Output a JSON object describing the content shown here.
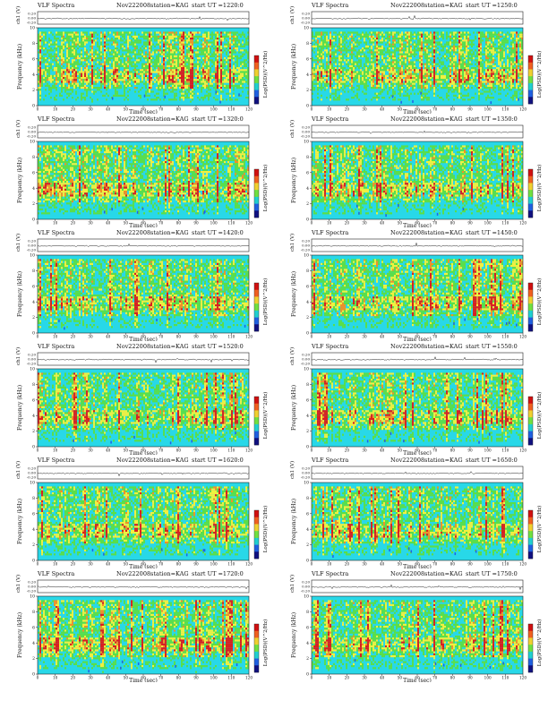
{
  "page": {
    "background": "#ffffff"
  },
  "common": {
    "title": "VLF Spectra",
    "date": "Nov222008",
    "station": "station=KAG",
    "ut_prefix": "start  UT  =",
    "amp_axis_label": "ch1 (V)",
    "freq_axis_label": "Frequency  (kHz)",
    "time_axis_label": "Time  (sec)",
    "colorbar_label": "Log(PSD)(V^2/Hz)"
  },
  "colors": {
    "spectro_bg": "#20e0a0",
    "cyan": "#28d8e8",
    "green": "#5ade4a",
    "yellow": "#f0f040",
    "orange": "#f09028",
    "red": "#d82020",
    "blue": "#2060e8",
    "trace": "#222222"
  },
  "colorbar": [
    "#d01010",
    "#f06020",
    "#f0d030",
    "#70e040",
    "#20d0d0",
    "#2060e0",
    "#101080"
  ],
  "panels": [
    {
      "ut": "1220:0",
      "freq_ticks": [
        "0",
        "2",
        "4",
        "6",
        "8",
        "10"
      ],
      "time_ticks": [
        "0",
        "10",
        "20",
        "30",
        "40",
        "50",
        "60",
        "70",
        "80",
        "90",
        "100",
        "110",
        "120"
      ],
      "amp_ticks": [
        "0.20",
        "0.00",
        "-0.20"
      ]
    },
    {
      "ut": "1250:0",
      "freq_ticks": [
        "0",
        "2",
        "4",
        "6",
        "8",
        "10"
      ],
      "time_ticks": [
        "0",
        "10",
        "20",
        "30",
        "40",
        "50",
        "60",
        "70",
        "80",
        "90",
        "100",
        "110",
        "120"
      ],
      "amp_ticks": [
        "0.20",
        "0.00",
        "-0.20"
      ]
    },
    {
      "ut": "1320:0",
      "freq_ticks": [
        "0",
        "2",
        "4",
        "6",
        "8",
        "10"
      ],
      "time_ticks": [
        "0",
        "10",
        "20",
        "30",
        "40",
        "50",
        "60",
        "70",
        "80",
        "90",
        "100",
        "110",
        "120"
      ],
      "amp_ticks": [
        "0.20",
        "0.00",
        "-0.20"
      ]
    },
    {
      "ut": "1350:0",
      "freq_ticks": [
        "0",
        "2",
        "4",
        "6",
        "8",
        "10"
      ],
      "time_ticks": [
        "0",
        "10",
        "20",
        "30",
        "40",
        "50",
        "60",
        "70",
        "80",
        "90",
        "100",
        "110",
        "120"
      ],
      "amp_ticks": [
        "0.20",
        "0.00",
        "-0.20"
      ]
    },
    {
      "ut": "1420:0",
      "freq_ticks": [
        "0",
        "2",
        "4",
        "6",
        "8",
        "10"
      ],
      "time_ticks": [
        "0",
        "10",
        "20",
        "30",
        "40",
        "50",
        "60",
        "70",
        "80",
        "90",
        "100",
        "110",
        "120"
      ],
      "amp_ticks": [
        "0.20",
        "0.00",
        "-0.20"
      ]
    },
    {
      "ut": "1450:0",
      "freq_ticks": [
        "0",
        "2",
        "4",
        "6",
        "8",
        "10"
      ],
      "time_ticks": [
        "0",
        "10",
        "20",
        "30",
        "40",
        "50",
        "60",
        "70",
        "80",
        "90",
        "100",
        "110",
        "120"
      ],
      "amp_ticks": [
        "0.20",
        "0.00",
        "-0.20"
      ]
    },
    {
      "ut": "1520:0",
      "freq_ticks": [
        "0",
        "2",
        "4",
        "6",
        "8",
        "10"
      ],
      "time_ticks": [
        "0",
        "10",
        "20",
        "30",
        "40",
        "50",
        "60",
        "70",
        "80",
        "90",
        "100",
        "110",
        "120"
      ],
      "amp_ticks": [
        "0.20",
        "0.00",
        "-0.20"
      ]
    },
    {
      "ut": "1550:0",
      "freq_ticks": [
        "0",
        "2",
        "4",
        "6",
        "8",
        "10"
      ],
      "time_ticks": [
        "0",
        "10",
        "20",
        "30",
        "40",
        "50",
        "60",
        "70",
        "80",
        "90",
        "100",
        "110",
        "120"
      ],
      "amp_ticks": [
        "0.20",
        "0.00",
        "-0.20"
      ]
    },
    {
      "ut": "1620:0",
      "freq_ticks": [
        "0",
        "2",
        "4",
        "6",
        "8",
        "10"
      ],
      "time_ticks": [
        "0",
        "10",
        "20",
        "30",
        "40",
        "50",
        "60",
        "70",
        "80",
        "90",
        "100",
        "110",
        "120"
      ],
      "amp_ticks": [
        "0.20",
        "0.00",
        "-0.20"
      ]
    },
    {
      "ut": "1650:0",
      "freq_ticks": [
        "0",
        "2",
        "4",
        "6",
        "8",
        "10"
      ],
      "time_ticks": [
        "0",
        "10",
        "20",
        "30",
        "40",
        "50",
        "60",
        "70",
        "80",
        "90",
        "100",
        "110",
        "120"
      ],
      "amp_ticks": [
        "0.20",
        "0.00",
        "-0.20"
      ]
    },
    {
      "ut": "1720:0",
      "freq_ticks": [
        "0",
        "2",
        "4",
        "6",
        "8",
        "10"
      ],
      "time_ticks": [
        "0",
        "10",
        "20",
        "30",
        "40",
        "50",
        "60",
        "70",
        "80",
        "90",
        "100",
        "110",
        "120"
      ],
      "amp_ticks": [
        "0.20",
        "0.00",
        "-0.20"
      ]
    },
    {
      "ut": "1750:0",
      "freq_ticks": [
        "0",
        "2",
        "4",
        "6",
        "8",
        "10"
      ],
      "time_ticks": [
        "0",
        "10",
        "20",
        "30",
        "40",
        "50",
        "60",
        "70",
        "80",
        "90",
        "100",
        "110",
        "120"
      ],
      "amp_ticks": [
        "0.20",
        "0.00",
        "-0.20"
      ]
    }
  ],
  "chart_data": {
    "type": "heatmap",
    "title": "VLF Spectra",
    "subtitle": "Nov222008  station=KAG",
    "xlabel": "Time  (sec)",
    "ylabel": "Frequency  (kHz)",
    "xlim": [
      0,
      120
    ],
    "ylim": [
      0,
      10
    ],
    "colorbar_label": "Log(PSD)(V^2/Hz)",
    "waveform_ylabel": "ch1 (V)",
    "waveform_ylim": [
      -0.2,
      0.2
    ],
    "start_ut": [
      "1220:0",
      "1250:0",
      "1320:0",
      "1350:0",
      "1420:0",
      "1450:0",
      "1520:0",
      "1550:0",
      "1620:0",
      "1650:0",
      "1720:0",
      "1750:0"
    ],
    "grid": false
  }
}
